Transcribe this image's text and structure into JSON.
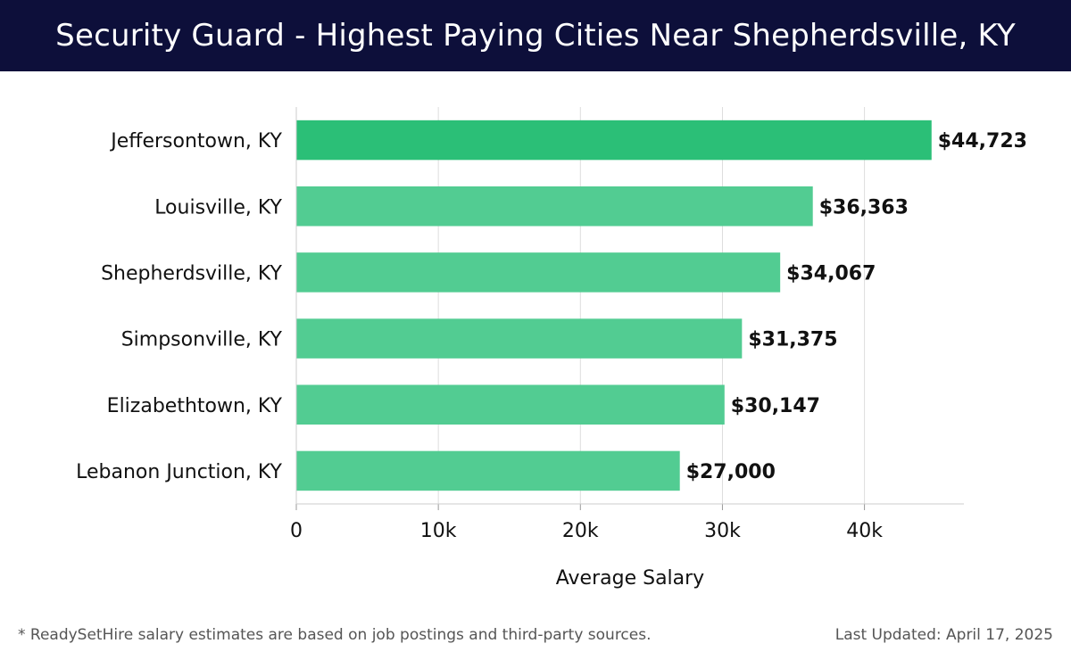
{
  "header": {
    "title": "Security Guard - Highest Paying Cities Near Shepherdsville, KY"
  },
  "chart_data": {
    "type": "bar",
    "orientation": "horizontal",
    "title": "Security Guard - Highest Paying Cities Near Shepherdsville, KY",
    "xlabel": "Average Salary",
    "ylabel": "",
    "categories": [
      "Jeffersontown, KY",
      "Louisville, KY",
      "Shepherdsville, KY",
      "Simpsonville, KY",
      "Elizabethtown, KY",
      "Lebanon Junction, KY"
    ],
    "values": [
      44723,
      36363,
      34067,
      31375,
      30147,
      27000
    ],
    "value_labels": [
      "$44,723",
      "$36,363",
      "$34,067",
      "$31,375",
      "$30,147",
      "$27,000"
    ],
    "xlim": [
      0,
      47000
    ],
    "xticks": [
      0,
      10000,
      20000,
      30000,
      40000
    ],
    "xtick_labels": [
      "0",
      "10k",
      "20k",
      "30k",
      "40k"
    ],
    "grid": true,
    "legend": "none",
    "colors": {
      "bar_top": "#2bbf77",
      "bar": "#52cc92",
      "grid": "#dddddd",
      "header_bg": "#0d0f3a"
    }
  },
  "footer": {
    "note": "* ReadySetHire salary estimates are based on job postings and third-party sources.",
    "updated": "Last Updated: April 17, 2025"
  }
}
